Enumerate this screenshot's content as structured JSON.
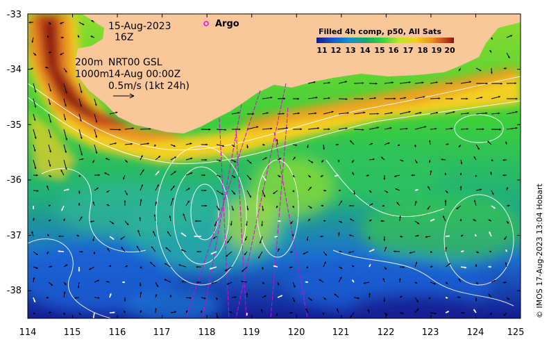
{
  "map": {
    "date": "15-Aug-2023",
    "hour": "16Z",
    "depth_line1": "200m",
    "depth_line2": "1000m",
    "product": "NRT00 GSL",
    "product_time": "14-Aug 00:00Z",
    "vector_scale": "0.5m/s (1kt 24h)",
    "argo_label": "Argo",
    "legend_title": "Filled 4h comp, p50, All Sats",
    "legend_labels": [
      "11",
      "12",
      "13",
      "14",
      "15",
      "16",
      "17",
      "18",
      "19",
      "20"
    ],
    "credit": "© IMOS 17-Aug-2023 13:04 Hobart",
    "lon_labels": [
      "114",
      "115",
      "116",
      "117",
      "118",
      "119",
      "120",
      "121",
      "122",
      "123",
      "124",
      "125"
    ],
    "lat_labels": [
      "-33",
      "-34",
      "-35",
      "-36",
      "-37",
      "-38"
    ],
    "lon_range": [
      114,
      125
    ],
    "lat_range": [
      -38.5,
      -33
    ],
    "colors": {
      "land": "#f9c79a",
      "sst_20": "#8b1a0a",
      "sst_19": "#c5481a",
      "sst_18": "#ea9220",
      "sst_17": "#f3cf22",
      "sst_16": "#b8e62a",
      "sst_15": "#3ccf3a",
      "sst_14": "#1aa86a",
      "sst_13": "#1f8ec0",
      "sst_12": "#1c55d6",
      "sst_11": "#121a8a",
      "argo": "#ff00ff",
      "track": "#e000e0",
      "contour": "#ffffff"
    }
  }
}
